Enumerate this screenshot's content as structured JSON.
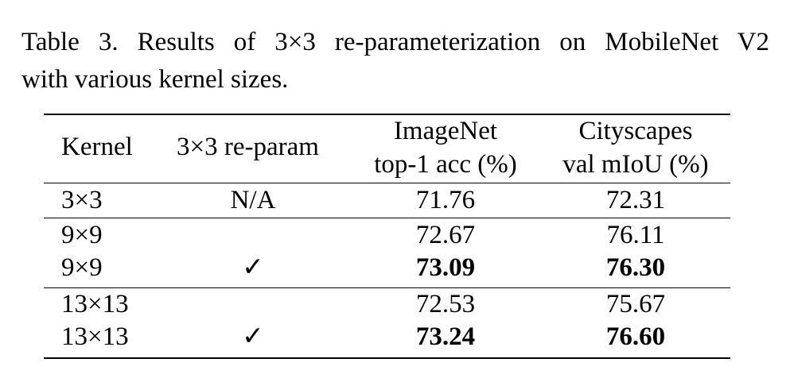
{
  "caption": {
    "line1": "Table 3.  Results of 3×3 re-parameterization on MobileNet V2",
    "line2": "with various kernel sizes."
  },
  "table": {
    "headers": {
      "kernel": "Kernel",
      "reparam": "3×3 re-param",
      "imagenet_line1": "ImageNet",
      "imagenet_line2": "top-1 acc (%)",
      "cityscapes_line1": "Cityscapes",
      "cityscapes_line2": "val mIoU (%)"
    },
    "rows": [
      {
        "kernel": "3×3",
        "reparam": "N/A",
        "imagenet": "71.76",
        "cityscapes": "72.31",
        "bold": false
      },
      {
        "kernel": "9×9",
        "reparam": "",
        "imagenet": "72.67",
        "cityscapes": "76.11",
        "bold": false
      },
      {
        "kernel": "9×9",
        "reparam": "✓",
        "imagenet": "73.09",
        "cityscapes": "76.30",
        "bold": true
      },
      {
        "kernel": "13×13",
        "reparam": "",
        "imagenet": "72.53",
        "cityscapes": "75.67",
        "bold": false
      },
      {
        "kernel": "13×13",
        "reparam": "✓",
        "imagenet": "73.24",
        "cityscapes": "76.60",
        "bold": true
      }
    ]
  }
}
